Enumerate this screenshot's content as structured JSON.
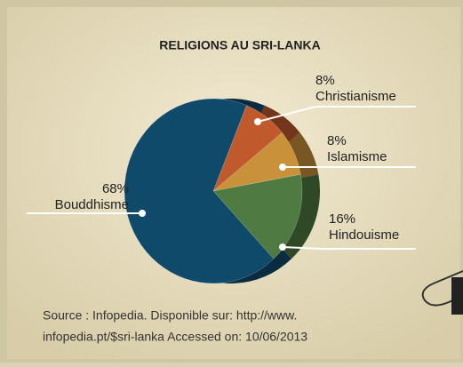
{
  "chart_data": {
    "type": "pie",
    "title": "RELIGIONS AU SRI-LANKA",
    "categories": [
      "Christianisme",
      "Islamisme",
      "Hindouisme",
      "Bouddhisme"
    ],
    "values": [
      8,
      8,
      16,
      68
    ],
    "value_labels": [
      "8%",
      "8%",
      "16%",
      "68%"
    ],
    "colors": [
      "#c05a2c",
      "#c9913a",
      "#4f7a41",
      "#0f4a6a"
    ],
    "source": [
      "Source : Infopedia. Disponible sur: http://www.",
      "infopedia.pt/$sri-lanka Accessed on: 10/06/2013"
    ]
  }
}
